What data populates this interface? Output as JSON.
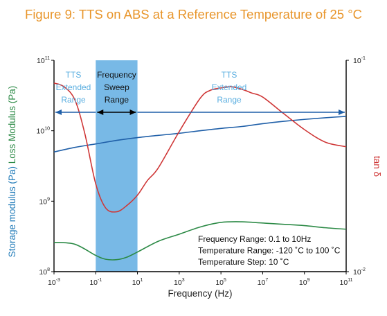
{
  "title": "Figure 9: TTS on ABS at a Reference Temperature of 25 °C",
  "chart_data": {
    "type": "line",
    "title": "Figure 9: TTS on ABS at a Reference Temperature of 25 °C",
    "xlabel": "Frequency (Hz)",
    "ylabel_left_parts": [
      "Storage modulus (Pa)",
      "Loss Modulus (Pa)"
    ],
    "ylabel_right": "tan δ",
    "x_scale": "log",
    "y_scale": "log",
    "xlim": [
      0.001,
      100000000000
    ],
    "ylim_left": [
      100000000,
      100000000000
    ],
    "ylim_right": [
      0.01,
      0.1
    ],
    "x_ticks": [
      {
        "value": 0.001,
        "base": "10",
        "exp": "-3"
      },
      {
        "value": 0.1,
        "base": "10",
        "exp": "-1"
      },
      {
        "value": 10,
        "base": "10",
        "exp": "1"
      },
      {
        "value": 1000,
        "base": "10",
        "exp": "3"
      },
      {
        "value": 100000,
        "base": "10",
        "exp": "5"
      },
      {
        "value": 10000000,
        "base": "10",
        "exp": "7"
      },
      {
        "value": 1000000000,
        "base": "10",
        "exp": "9"
      },
      {
        "value": 100000000000,
        "base": "10",
        "exp": "11"
      }
    ],
    "y_ticks_left": [
      {
        "value": 100000000,
        "base": "10",
        "exp": "8"
      },
      {
        "value": 1000000000,
        "base": "10",
        "exp": "9"
      },
      {
        "value": 10000000000,
        "base": "10",
        "exp": "10"
      },
      {
        "value": 100000000000,
        "base": "10",
        "exp": "11"
      }
    ],
    "y_ticks_right": [
      {
        "value": 0.01,
        "base": "10",
        "exp": "-2"
      },
      {
        "value": 0.1,
        "base": "10",
        "exp": "-1"
      }
    ],
    "shaded_region": {
      "x": [
        0.1,
        10
      ],
      "label_lines": [
        "Frequency",
        "Sweep",
        "Range"
      ],
      "color": "#78b9e6"
    },
    "extended_left_label_lines": [
      "TTS",
      "Extended",
      "Range"
    ],
    "extended_right_label_lines": [
      "TTS",
      "Extended",
      "Range"
    ],
    "extended_label_color": "#5aaee0",
    "annotation_lines": [
      "Frequency Range: 0.1 to 10Hz",
      "Temperature Range: -120 ˚C to 100 ˚C",
      "Temperature Step: 10 ˚C"
    ],
    "series": [
      {
        "axis": "left",
        "color": "#1f5fa8",
        "x": [
          0.001,
          0.01,
          0.1,
          1,
          10,
          100,
          1000,
          10000,
          100000,
          1000000,
          10000000,
          100000000,
          1000000000,
          10000000000,
          100000000000
        ],
        "y": [
          5000000000,
          5800000000,
          6500000000,
          7300000000,
          8000000000,
          8600000000,
          9200000000,
          10000000000,
          10800000000,
          11500000000,
          12600000000,
          13600000000,
          14500000000,
          15300000000,
          16000000000
        ]
      },
      {
        "axis": "left",
        "color": "#2c8a46",
        "x": [
          0.001,
          0.01,
          0.1,
          0.3,
          1,
          3,
          10,
          100,
          1000,
          10000,
          100000,
          1000000,
          10000000,
          100000000,
          1000000000,
          10000000000,
          100000000000
        ],
        "y": [
          260000000,
          245000000,
          170000000,
          150000000,
          148000000,
          160000000,
          190000000,
          270000000,
          340000000,
          430000000,
          500000000,
          510000000,
          490000000,
          470000000,
          450000000,
          420000000,
          400000000
        ]
      },
      {
        "axis": "right",
        "color": "#cf3737",
        "x": [
          0.001,
          0.003,
          0.01,
          0.03,
          0.1,
          0.3,
          1,
          3,
          10,
          30,
          100,
          1000,
          10000,
          30000,
          100000,
          300000,
          1000000,
          3000000,
          10000000,
          100000000,
          1000000000,
          10000000000,
          100000000000
        ],
        "y": [
          0.078,
          0.075,
          0.065,
          0.045,
          0.026,
          0.02,
          0.0192,
          0.0205,
          0.023,
          0.027,
          0.031,
          0.046,
          0.066,
          0.072,
          0.074,
          0.075,
          0.073,
          0.07,
          0.067,
          0.056,
          0.047,
          0.041,
          0.039
        ]
      }
    ]
  }
}
